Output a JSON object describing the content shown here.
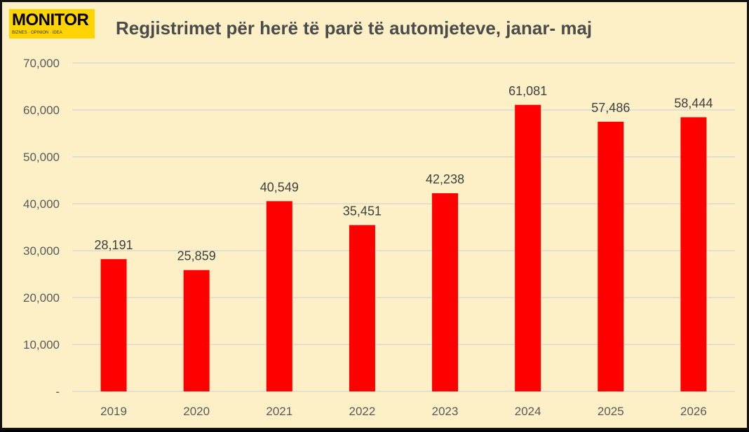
{
  "logo": {
    "text": "MONITOR",
    "subtext": "BIZNES · OPINION · IDEA"
  },
  "colors": {
    "background": "#fdf0c6",
    "bar": "#ff0000",
    "grid": "#d4d4d4",
    "logo_bg": "#ffd400"
  },
  "chart_data": {
    "type": "bar",
    "title": "Regjistrimet për herë të parë të automjeteve, janar- maj",
    "xlabel": "",
    "ylabel": "",
    "categories": [
      "2019",
      "2020",
      "2021",
      "2022",
      "2023",
      "2024",
      "2025",
      "2026"
    ],
    "values": [
      28191,
      25859,
      40549,
      35451,
      42238,
      61081,
      57486,
      58444
    ],
    "data_labels": [
      "28,191",
      "25,859",
      "40,549",
      "35,451",
      "42,238",
      "61,081",
      "57,486",
      "58,444"
    ],
    "ylim": [
      0,
      70000
    ],
    "yticks": [
      0,
      10000,
      20000,
      30000,
      40000,
      50000,
      60000,
      70000
    ],
    "ytick_labels": [
      "-",
      "10,000",
      "20,000",
      "30,000",
      "40,000",
      "50,000",
      "60,000",
      "70,000"
    ],
    "grid": true,
    "legend": "none"
  }
}
